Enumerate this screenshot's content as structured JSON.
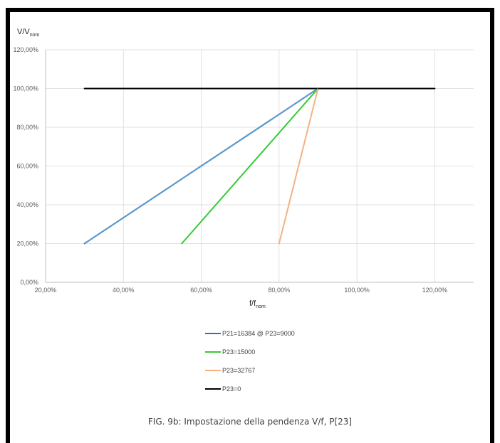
{
  "caption": "FIG. 9b: Impostazione della pendenza V/f, P[23]",
  "chart_data": {
    "type": "line",
    "ylabel_main": "V/V",
    "ylabel_sub": "nom",
    "xlabel_main": "f/f",
    "xlabel_sub": "nom",
    "xlim": [
      20,
      130
    ],
    "ylim": [
      0,
      120
    ],
    "x_ticks": [
      20,
      40,
      60,
      80,
      100,
      120
    ],
    "x_tick_labels": [
      "20,00%",
      "40,00%",
      "60,00%",
      "80,00%",
      "100,00%",
      "120,00%"
    ],
    "y_ticks": [
      0,
      20,
      40,
      60,
      80,
      100,
      120
    ],
    "y_tick_labels": [
      "0,00%",
      "20,00%",
      "40,00%",
      "60,00%",
      "80,00%",
      "100,00%",
      "120,00%"
    ],
    "grid": true,
    "legend_position": "bottom",
    "series": [
      {
        "name": "P21=16384 @ P23=9000",
        "color": "#2e75b6",
        "points": [
          [
            30,
            20
          ],
          [
            90,
            100
          ]
        ]
      },
      {
        "name": "P23=15000",
        "color": "#33cc33",
        "points": [
          [
            55,
            20
          ],
          [
            90,
            100
          ]
        ]
      },
      {
        "name": "P23=32767",
        "color": "#f4b183",
        "points": [
          [
            80,
            20
          ],
          [
            90,
            100
          ]
        ]
      },
      {
        "name": "P23=0",
        "color": "#000000",
        "points": [
          [
            30,
            100
          ],
          [
            120,
            100
          ]
        ]
      }
    ],
    "extra_lines": [
      {
        "series_index": 0,
        "color": "#6fa8dc",
        "points": [
          [
            30,
            20
          ],
          [
            90,
            100
          ]
        ]
      }
    ]
  }
}
